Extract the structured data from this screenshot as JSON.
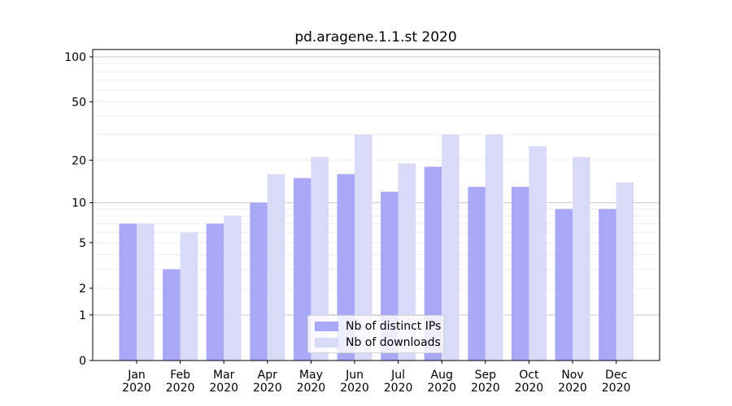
{
  "chart_data": {
    "type": "bar",
    "title": "pd.aragene.1.1.st 2020",
    "categories": [
      "Jan",
      "Feb",
      "Mar",
      "Apr",
      "May",
      "Jun",
      "Jul",
      "Aug",
      "Sep",
      "Oct",
      "Nov",
      "Dec"
    ],
    "year_label": "2020",
    "series": [
      {
        "name": "Nb of distinct IPs",
        "color": "#a8a8f7",
        "values": [
          7,
          3,
          7,
          10,
          15,
          16,
          12,
          18,
          13,
          13,
          9,
          9
        ]
      },
      {
        "name": "Nb of downloads",
        "color": "#d9d9f8",
        "values": [
          7,
          6,
          8,
          16,
          21,
          30,
          19,
          30,
          30,
          25,
          21,
          14
        ]
      }
    ],
    "xlabel": "",
    "ylabel": "",
    "yscale": "log(1+x)",
    "ylim": [
      0,
      112
    ],
    "yticks": [
      0,
      1,
      2,
      5,
      10,
      20,
      50,
      100
    ],
    "ytick_labels": [
      "0",
      "1",
      "2",
      "5",
      "10",
      "20",
      "50",
      "100"
    ],
    "major_grid_values": [
      1,
      10,
      100
    ],
    "minor_grid_values": [
      2,
      3,
      4,
      5,
      6,
      7,
      8,
      9,
      20,
      30,
      40,
      50,
      60,
      70,
      80,
      90
    ],
    "grid": true,
    "legend_position": "lower center",
    "colors": {
      "major_grid": "#c8c8c8",
      "minor_grid": "#ededed",
      "spine": "#000000",
      "tick": "#000000",
      "background": "#ffffff"
    }
  }
}
